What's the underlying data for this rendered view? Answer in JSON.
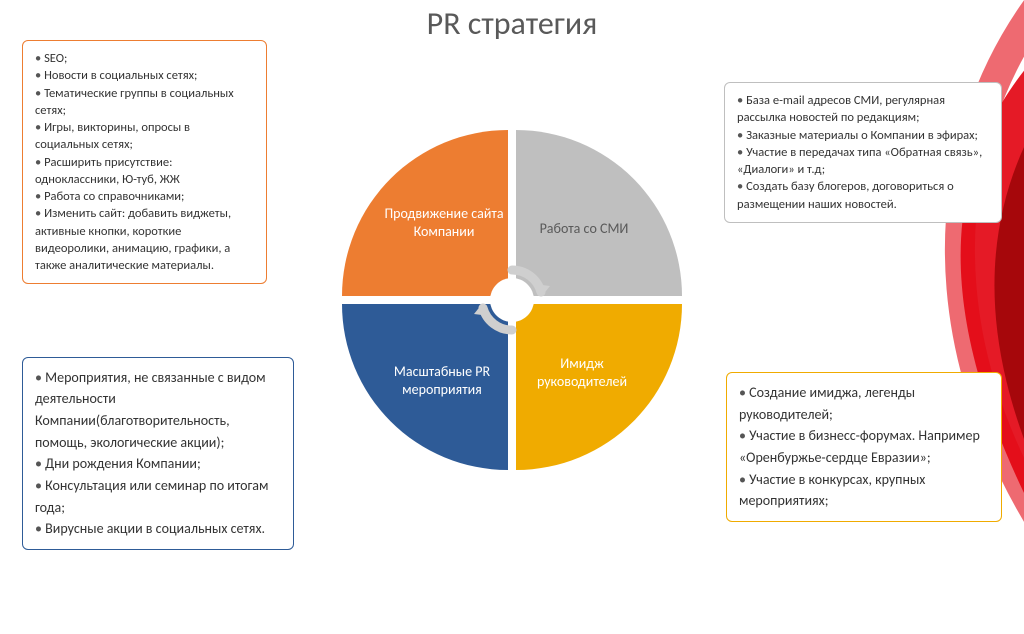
{
  "title": "PR стратегия",
  "background": {
    "swoosh_colors": [
      "#e30613",
      "#8c0000",
      "#ffffff"
    ]
  },
  "wheel": {
    "diameter": 340,
    "quadrants": {
      "tl": {
        "label": "Продвижение сайта Компании",
        "color": "#ed7d31"
      },
      "tr": {
        "label": "Работа со СМИ",
        "color": "#bfbfbf",
        "text_color": "#595959"
      },
      "bl": {
        "label": "Масштабные PR мероприятия",
        "color": "#2e5b97"
      },
      "br": {
        "label": "Имидж руководителей",
        "color": "#f0ab00"
      }
    },
    "hub_color": "#ffffff",
    "arrow_color": "#cfcfcf"
  },
  "panels": {
    "tl": {
      "border_color": "#ed7d31",
      "items": [
        "SEO;",
        "Новости в социальных сетях;",
        "Тематические группы в социальных сетях;",
        "Игры, викторины, опросы в социальных сетях;",
        "Расширить присутствие: одноклассники, Ю-туб, ЖЖ",
        "Работа со справочниками;",
        "Изменить сайт: добавить виджеты, активные кнопки, короткие видеоролики, анимацию, графики, а также аналитические материалы."
      ]
    },
    "tr": {
      "border_color": "#bfbfbf",
      "items": [
        "База e-mail адресов СМИ, регулярная рассылка новостей по редакциям;",
        "Заказные материалы о Компании в эфирах;",
        "Участие в передачах типа «Обратная связь», «Диалоги» и т.д;",
        "Создать базу блогеров, договориться о размещении наших новостей."
      ]
    },
    "bl": {
      "border_color": "#2e5b97",
      "items": [
        "Мероприятия, не связанные с видом деятельности Компании(благотворительность, помощь, экологические акции);",
        "Дни рождения Компании;",
        "Консультация или семинар по итогам года;",
        "Вирусные акции в социальных сетях."
      ]
    },
    "br": {
      "border_color": "#f0ab00",
      "items": [
        "Создание имиджа, легенды руководителей;",
        "Участие в бизнесс-форумах. Например «Оренбуржье-сердце Евразии»;",
        "Участие в конкурсах, крупных мероприятиях;"
      ]
    }
  }
}
